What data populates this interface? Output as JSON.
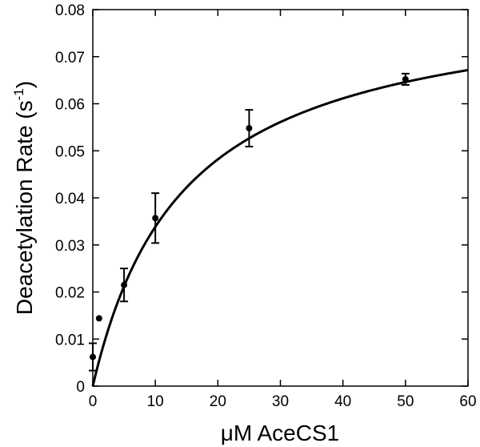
{
  "chart_data": {
    "type": "scatter",
    "xlabel": "μM AceCS1",
    "ylabel_main": "Deacetylation Rate (s",
    "ylabel_sup": "-1",
    "ylabel_close": ")",
    "xlim": [
      0,
      60
    ],
    "ylim": [
      0,
      0.08
    ],
    "x_ticks": [
      0,
      10,
      20,
      30,
      40,
      50,
      60
    ],
    "y_ticks": [
      0,
      0.01,
      0.02,
      0.03,
      0.04,
      0.05,
      0.06,
      0.07,
      0.08
    ],
    "x_tick_labels": [
      "0",
      "10",
      "20",
      "30",
      "40",
      "50",
      "60"
    ],
    "y_tick_labels": [
      "0",
      "0.01",
      "0.02",
      "0.03",
      "0.04",
      "0.05",
      "0.06",
      "0.07",
      "0.08"
    ],
    "grid": false,
    "color": "#000000",
    "points": [
      {
        "x": 0,
        "y": 0.0062,
        "err": 0.0029
      },
      {
        "x": 1,
        "y": 0.0144,
        "err": 0
      },
      {
        "x": 5,
        "y": 0.0215,
        "err": 0.0035
      },
      {
        "x": 10,
        "y": 0.0357,
        "err": 0.0053
      },
      {
        "x": 25,
        "y": 0.0548,
        "err": 0.0039
      },
      {
        "x": 50,
        "y": 0.0652,
        "err": 0.0012
      }
    ],
    "fit": {
      "type": "hyperbolic",
      "vmax": 0.0836,
      "km": 14.7
    }
  }
}
